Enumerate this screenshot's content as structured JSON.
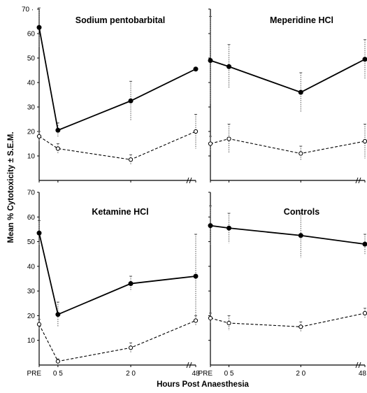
{
  "chart_data": {
    "type": "line",
    "ylabel": "Mean % Cytotoxicity ± S.E.M.",
    "xlabel": "Hours Post Anaesthesia",
    "x": [
      "PRE",
      "0.5",
      "2.0",
      "48"
    ],
    "x_tick_labels": [
      "PRE",
      "0 5",
      "2 0",
      "48"
    ],
    "ylim": [
      0,
      70
    ],
    "y_ticks": [
      10,
      20,
      30,
      40,
      50,
      60,
      70
    ],
    "top_y_tick_label": "70 ·",
    "axis_break": "//",
    "panels": [
      {
        "title": "Sodium pentobarbital",
        "series": [
          {
            "marker": "filled",
            "line": "solid",
            "values": [
              62.5,
              20.5,
              32.5,
              45.5
            ],
            "sem": [
              8,
              3,
              8,
              0
            ]
          },
          {
            "marker": "open",
            "line": "dashed",
            "values": [
              18,
              13,
              8.5,
              20
            ],
            "sem": [
              2,
              2,
              2,
              7
            ]
          }
        ]
      },
      {
        "title": "Meperidine HCl",
        "series": [
          {
            "marker": "filled",
            "line": "solid",
            "values": [
              49,
              46.5,
              36,
              49.5
            ],
            "sem": [
              18,
              9,
              8,
              8
            ]
          },
          {
            "marker": "open",
            "line": "dashed",
            "values": [
              15,
              17,
              11,
              16
            ],
            "sem": [
              3,
              6,
              3,
              7
            ]
          }
        ]
      },
      {
        "title": "Ketamine HCl",
        "series": [
          {
            "marker": "filled",
            "line": "solid",
            "values": [
              53.5,
              20.5,
              33,
              36
            ],
            "sem": [
              5,
              5,
              3,
              17
            ]
          },
          {
            "marker": "open",
            "line": "dashed",
            "values": [
              16.5,
              1.5,
              7,
              18
            ],
            "sem": [
              2,
              1,
              2,
              2
            ]
          }
        ]
      },
      {
        "title": "Controls",
        "series": [
          {
            "marker": "filled",
            "line": "solid",
            "values": [
              56.5,
              55.5,
              52.5,
              49
            ],
            "sem": [
              8,
              6,
              9,
              4
            ]
          },
          {
            "marker": "open",
            "line": "dashed",
            "values": [
              19,
              17,
              15.5,
              21
            ],
            "sem": [
              2,
              3,
              2,
              2
            ]
          }
        ]
      }
    ]
  }
}
